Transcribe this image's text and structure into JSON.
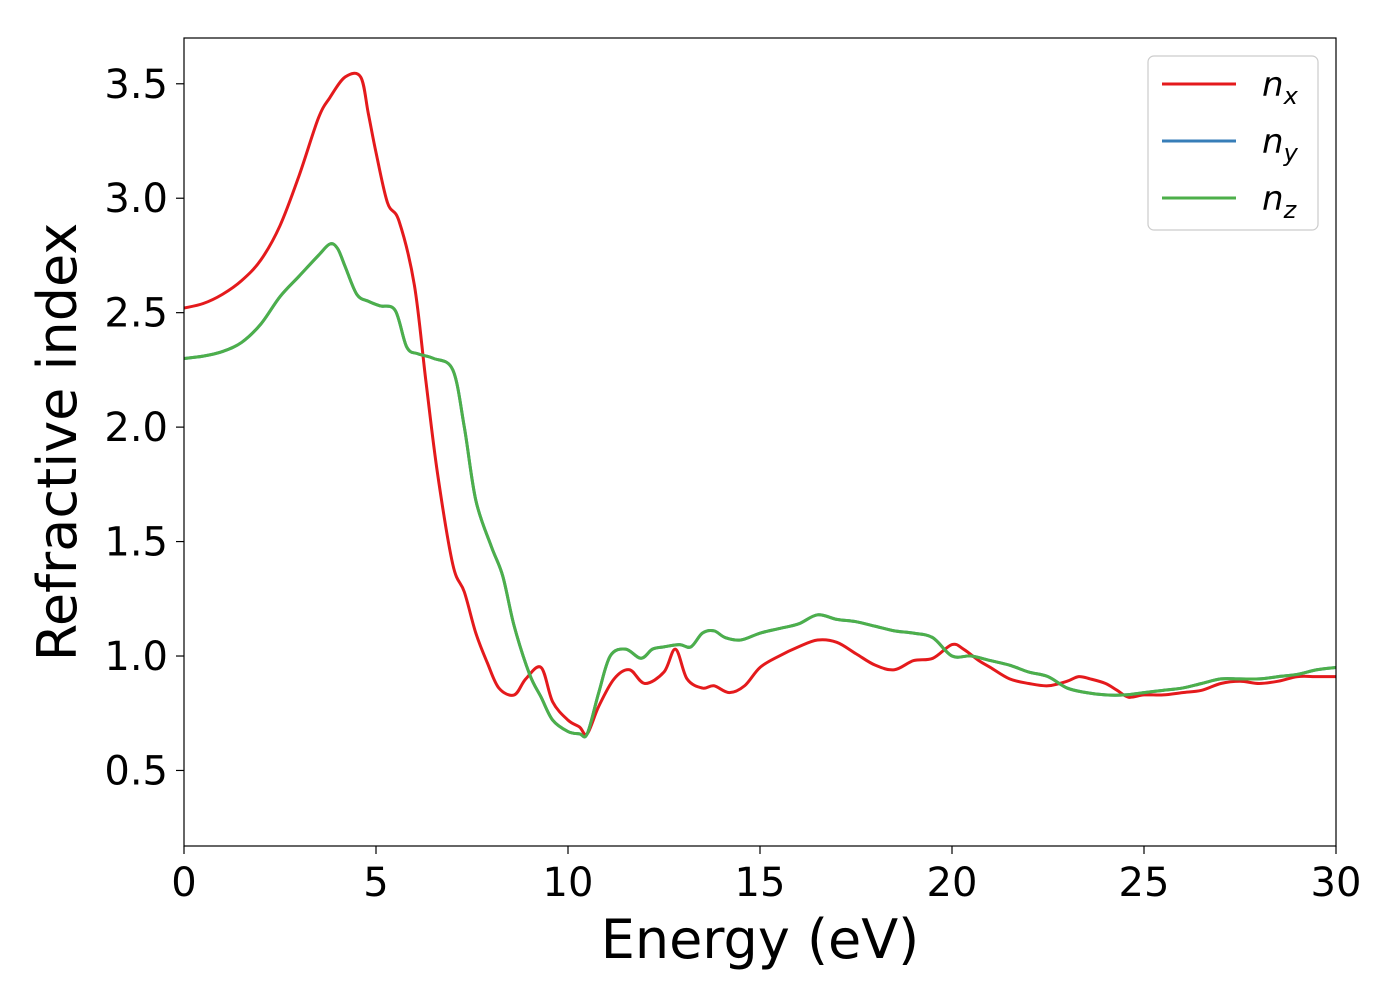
{
  "chart_data": {
    "type": "line",
    "title": "",
    "xlabel": "Energy (eV)",
    "ylabel": "Refractive index",
    "xlim": [
      0,
      30
    ],
    "ylim": [
      0.17,
      3.7
    ],
    "xticks": [
      0,
      5,
      10,
      15,
      20,
      25,
      30
    ],
    "yticks": [
      0.5,
      1.0,
      1.5,
      2.0,
      2.5,
      3.0,
      3.5
    ],
    "grid": false,
    "legend_position": "top-right",
    "series": [
      {
        "name": "n",
        "subscript": "x",
        "color": "#e41a1c",
        "x": [
          0,
          0.5,
          1,
          1.5,
          2,
          2.5,
          3,
          3.5,
          3.8,
          4.2,
          4.6,
          4.8,
          5,
          5.3,
          5.6,
          6,
          6.3,
          6.6,
          7,
          7.3,
          7.6,
          7.9,
          8.2,
          8.6,
          8.9,
          9.3,
          9.6,
          10,
          10.3,
          10.5,
          10.8,
          11.2,
          11.6,
          12,
          12.5,
          12.8,
          13.1,
          13.5,
          13.8,
          14.2,
          14.6,
          15,
          15.5,
          16,
          16.5,
          17,
          17.5,
          18,
          18.5,
          19,
          19.5,
          20,
          20.3,
          20.7,
          21,
          21.5,
          22,
          22.5,
          23,
          23.3,
          23.6,
          24,
          24.3,
          24.6,
          25,
          25.5,
          26,
          26.5,
          27,
          27.5,
          28,
          28.5,
          29,
          29.5,
          30
        ],
        "y": [
          2.52,
          2.54,
          2.58,
          2.64,
          2.73,
          2.88,
          3.1,
          3.35,
          3.44,
          3.53,
          3.53,
          3.37,
          3.2,
          2.98,
          2.9,
          2.62,
          2.2,
          1.8,
          1.4,
          1.28,
          1.1,
          0.97,
          0.86,
          0.83,
          0.9,
          0.95,
          0.8,
          0.72,
          0.69,
          0.66,
          0.78,
          0.9,
          0.94,
          0.88,
          0.93,
          1.03,
          0.9,
          0.86,
          0.87,
          0.84,
          0.87,
          0.95,
          1.0,
          1.04,
          1.07,
          1.06,
          1.01,
          0.96,
          0.94,
          0.98,
          0.99,
          1.05,
          1.03,
          0.98,
          0.95,
          0.9,
          0.88,
          0.87,
          0.89,
          0.91,
          0.9,
          0.88,
          0.85,
          0.82,
          0.83,
          0.83,
          0.84,
          0.85,
          0.88,
          0.89,
          0.88,
          0.89,
          0.91,
          0.91,
          0.91
        ]
      },
      {
        "name": "n",
        "subscript": "y",
        "color": "#377eb8",
        "x": [
          0,
          0.5,
          1,
          1.5,
          2,
          2.5,
          3,
          3.5,
          3.8,
          4,
          4.2,
          4.5,
          4.8,
          5.1,
          5.5,
          5.8,
          6.1,
          6.5,
          7,
          7.3,
          7.6,
          8,
          8.3,
          8.6,
          9,
          9.3,
          9.6,
          10,
          10.3,
          10.5,
          10.8,
          11.1,
          11.5,
          11.9,
          12.2,
          12.5,
          12.9,
          13.2,
          13.5,
          13.8,
          14.1,
          14.5,
          15,
          15.5,
          16,
          16.5,
          17,
          17.5,
          18,
          18.5,
          19,
          19.5,
          20,
          20.5,
          21,
          21.5,
          22,
          22.5,
          23,
          23.5,
          24,
          24.5,
          25,
          25.5,
          26,
          26.5,
          27,
          27.5,
          28,
          28.5,
          29,
          29.5,
          30
        ],
        "y": [
          2.3,
          2.31,
          2.33,
          2.37,
          2.45,
          2.57,
          2.66,
          2.75,
          2.8,
          2.78,
          2.7,
          2.58,
          2.55,
          2.53,
          2.51,
          2.35,
          2.32,
          2.3,
          2.25,
          2.0,
          1.68,
          1.48,
          1.35,
          1.13,
          0.92,
          0.82,
          0.72,
          0.67,
          0.66,
          0.66,
          0.84,
          1.0,
          1.03,
          0.99,
          1.03,
          1.04,
          1.05,
          1.04,
          1.1,
          1.11,
          1.08,
          1.07,
          1.1,
          1.12,
          1.14,
          1.18,
          1.16,
          1.15,
          1.13,
          1.11,
          1.1,
          1.08,
          1.0,
          1.0,
          0.98,
          0.96,
          0.93,
          0.91,
          0.86,
          0.84,
          0.83,
          0.83,
          0.84,
          0.85,
          0.86,
          0.88,
          0.9,
          0.9,
          0.9,
          0.91,
          0.92,
          0.94,
          0.95
        ]
      },
      {
        "name": "n",
        "subscript": "z",
        "color": "#4daf4a",
        "x": [
          0,
          0.5,
          1,
          1.5,
          2,
          2.5,
          3,
          3.5,
          3.8,
          4,
          4.2,
          4.5,
          4.8,
          5.1,
          5.5,
          5.8,
          6.1,
          6.5,
          7,
          7.3,
          7.6,
          8,
          8.3,
          8.6,
          9,
          9.3,
          9.6,
          10,
          10.3,
          10.5,
          10.8,
          11.1,
          11.5,
          11.9,
          12.2,
          12.5,
          12.9,
          13.2,
          13.5,
          13.8,
          14.1,
          14.5,
          15,
          15.5,
          16,
          16.5,
          17,
          17.5,
          18,
          18.5,
          19,
          19.5,
          20,
          20.5,
          21,
          21.5,
          22,
          22.5,
          23,
          23.5,
          24,
          24.5,
          25,
          25.5,
          26,
          26.5,
          27,
          27.5,
          28,
          28.5,
          29,
          29.5,
          30
        ],
        "y": [
          2.3,
          2.31,
          2.33,
          2.37,
          2.45,
          2.57,
          2.66,
          2.75,
          2.8,
          2.78,
          2.7,
          2.58,
          2.55,
          2.53,
          2.51,
          2.35,
          2.32,
          2.3,
          2.25,
          2.0,
          1.68,
          1.48,
          1.35,
          1.13,
          0.92,
          0.82,
          0.72,
          0.67,
          0.66,
          0.66,
          0.84,
          1.0,
          1.03,
          0.99,
          1.03,
          1.04,
          1.05,
          1.04,
          1.1,
          1.11,
          1.08,
          1.07,
          1.1,
          1.12,
          1.14,
          1.18,
          1.16,
          1.15,
          1.13,
          1.11,
          1.1,
          1.08,
          1.0,
          1.0,
          0.98,
          0.96,
          0.93,
          0.91,
          0.86,
          0.84,
          0.83,
          0.83,
          0.84,
          0.85,
          0.86,
          0.88,
          0.9,
          0.9,
          0.9,
          0.91,
          0.92,
          0.94,
          0.95
        ]
      }
    ]
  }
}
